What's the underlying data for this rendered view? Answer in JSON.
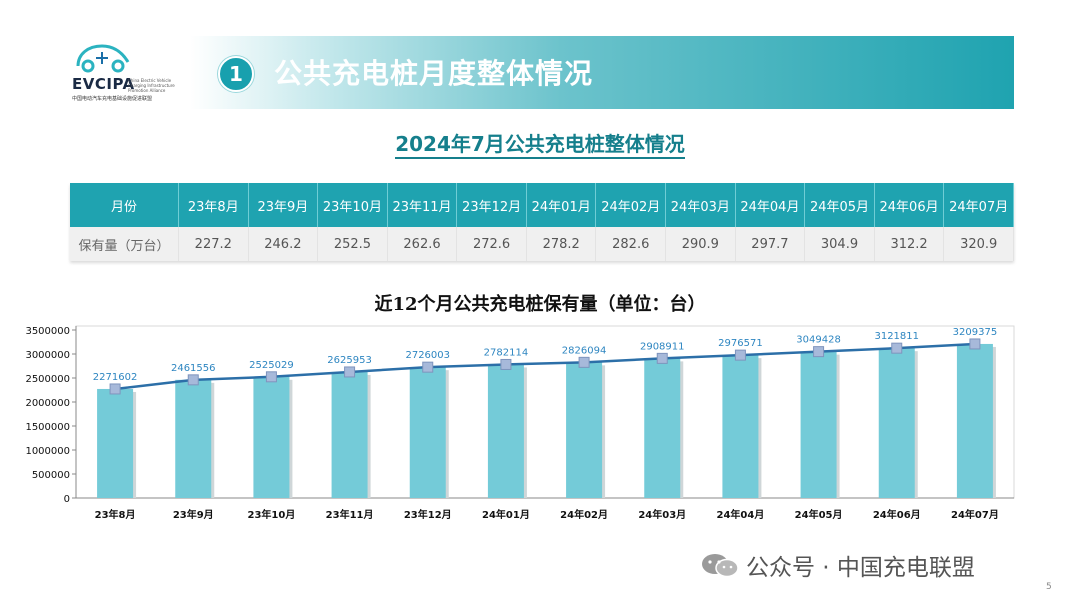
{
  "logo": {
    "name": "EVCIPA",
    "en_small": "China Electric Vehicle Charging Infrastructure Promotion Alliance",
    "cn": "中国电动汽车充电基础设施促进联盟"
  },
  "header": {
    "number": "1",
    "title": "公共充电桩月度整体情况"
  },
  "subtitle": "2024年7月公共充电桩整体情况",
  "table": {
    "head_label": "月份",
    "row_label": "保有量（万台）",
    "months": [
      "23年8月",
      "23年9月",
      "23年10月",
      "23年11月",
      "23年12月",
      "24年01月",
      "24年02月",
      "24年03月",
      "24年04月",
      "24年05月",
      "24年06月",
      "24年07月"
    ],
    "values": [
      "227.2",
      "246.2",
      "252.5",
      "262.6",
      "272.6",
      "278.2",
      "282.6",
      "290.9",
      "297.7",
      "304.9",
      "312.2",
      "320.9"
    ]
  },
  "chart_data": {
    "type": "bar",
    "title": "近12个月公共充电桩保有量（单位：台）",
    "categories": [
      "23年8月",
      "23年9月",
      "23年10月",
      "23年11月",
      "23年12月",
      "24年01月",
      "24年02月",
      "24年03月",
      "24年04月",
      "24年05月",
      "24年06月",
      "24年07月"
    ],
    "values": [
      2271602,
      2461556,
      2525029,
      2625953,
      2726003,
      2782114,
      2826094,
      2908911,
      2976571,
      3049428,
      3121811,
      3209375
    ],
    "line_overlay": true,
    "ylim": [
      0,
      3500000
    ],
    "yticks": [
      0,
      500000,
      1000000,
      1500000,
      2000000,
      2500000,
      3000000,
      3500000
    ],
    "grid": false,
    "colors": {
      "bar": "#74cbd8",
      "line": "#2c6fa8",
      "marker": "#a7b9da",
      "label": "#2e86c1"
    }
  },
  "footer": {
    "text": "公众号 · 中国充电联盟",
    "page": "5"
  }
}
